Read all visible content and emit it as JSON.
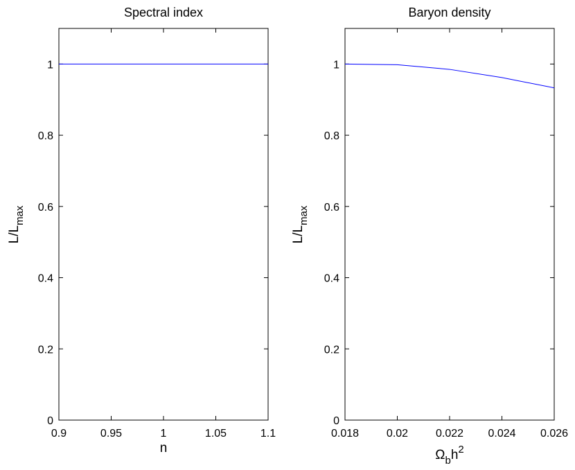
{
  "chart_data": [
    {
      "type": "line",
      "title": "Spectral index",
      "xlabel": "n",
      "ylabel": {
        "main": "L/L",
        "sub": "max"
      },
      "xlim": [
        0.9,
        1.1
      ],
      "ylim": [
        0,
        1.1
      ],
      "x_ticks": [
        0.9,
        0.95,
        1,
        1.05,
        1.1
      ],
      "x_tick_labels": [
        "0.9",
        "0.95",
        "1",
        "1.05",
        "1.1"
      ],
      "y_ticks": [
        0,
        0.2,
        0.4,
        0.6,
        0.8,
        1
      ],
      "y_tick_labels": [
        "0",
        "0.2",
        "0.4",
        "0.6",
        "0.8",
        "1"
      ],
      "grid": false,
      "color": "#0000ff",
      "series": [
        {
          "x": [
            0.9,
            0.95,
            1.0,
            1.05,
            1.1
          ],
          "y": [
            1.0,
            1.0,
            1.0,
            1.0,
            1.0
          ]
        }
      ]
    },
    {
      "type": "line",
      "title": "Baryon density",
      "xlabel": {
        "main": "Ω",
        "sub": "b",
        "after": "h",
        "sup": "2"
      },
      "ylabel": {
        "main": "L/L",
        "sub": "max"
      },
      "xlim": [
        0.018,
        0.026
      ],
      "ylim": [
        0,
        1.1
      ],
      "x_ticks": [
        0.018,
        0.02,
        0.022,
        0.024,
        0.026
      ],
      "x_tick_labels": [
        "0.018",
        "0.02",
        "0.022",
        "0.024",
        "0.026"
      ],
      "y_ticks": [
        0,
        0.2,
        0.4,
        0.6,
        0.8,
        1
      ],
      "y_tick_labels": [
        "0",
        "0.2",
        "0.4",
        "0.6",
        "0.8",
        "1"
      ],
      "grid": false,
      "color": "#0000ff",
      "series": [
        {
          "x": [
            0.018,
            0.02,
            0.022,
            0.024,
            0.026
          ],
          "y": [
            1.0,
            0.998,
            0.985,
            0.962,
            0.933
          ]
        }
      ]
    }
  ]
}
